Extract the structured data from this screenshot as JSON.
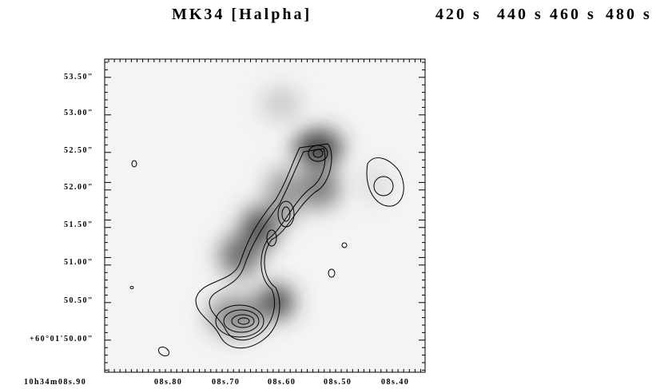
{
  "figure": {
    "title": "MK34 [Halpha]",
    "title_overlays": [
      "420 s",
      "440 s",
      "460 s",
      "480 s"
    ],
    "y_labels": [
      "53.50\"",
      "53.00\"",
      "52.50\"",
      "52.00\"",
      "51.50\"",
      "51.00\"",
      "50.50\"",
      "+60°01'50.00\""
    ],
    "x_labels": [
      "10h34m08s.90",
      "08s.80",
      "08s.70",
      "08s.60",
      "08s.50",
      "08s.40"
    ]
  }
}
